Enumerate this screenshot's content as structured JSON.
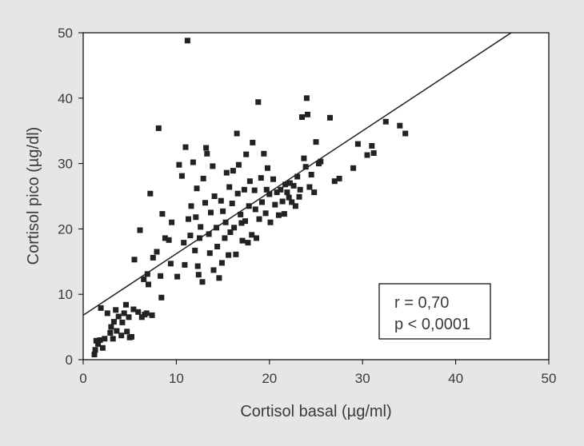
{
  "chart_data": {
    "type": "scatter",
    "title": "",
    "xlabel": "Cortisol basal (µg/ml)",
    "ylabel": "Cortisol pico (µg/dl)",
    "xlim": [
      0,
      50
    ],
    "ylim": [
      0,
      50
    ],
    "x_ticks": [
      "0",
      "10",
      "20",
      "30",
      "40",
      "50"
    ],
    "y_ticks": [
      "0",
      "10",
      "20",
      "30",
      "40",
      "50"
    ],
    "grid": false,
    "colors": {
      "points": "#222222",
      "line": "#222222",
      "background": "#e6e6e6",
      "plot_area": "#ffffff"
    },
    "regression_line": {
      "intercept": 6.8,
      "slope": 0.94
    },
    "annotation": {
      "lines": [
        "r = 0,70",
        "p < 0,0001"
      ],
      "placement": "bottom-right"
    },
    "points": [
      [
        1.2,
        0.8
      ],
      [
        1.3,
        1.5
      ],
      [
        1.4,
        2.9
      ],
      [
        1.6,
        2.4
      ],
      [
        1.8,
        3.0
      ],
      [
        2.1,
        1.8
      ],
      [
        2.3,
        3.2
      ],
      [
        1.9,
        7.9
      ],
      [
        2.6,
        7.1
      ],
      [
        2.9,
        4.1
      ],
      [
        3.0,
        5.0
      ],
      [
        3.2,
        3.2
      ],
      [
        3.3,
        5.8
      ],
      [
        3.5,
        7.6
      ],
      [
        3.6,
        4.4
      ],
      [
        3.8,
        6.6
      ],
      [
        4.1,
        3.7
      ],
      [
        4.2,
        5.7
      ],
      [
        4.4,
        7.1
      ],
      [
        4.6,
        8.4
      ],
      [
        4.7,
        4.3
      ],
      [
        4.9,
        6.5
      ],
      [
        5.0,
        3.4
      ],
      [
        5.2,
        3.5
      ],
      [
        5.4,
        7.7
      ],
      [
        5.5,
        15.3
      ],
      [
        5.9,
        7.3
      ],
      [
        6.1,
        19.8
      ],
      [
        6.3,
        6.5
      ],
      [
        6.5,
        12.3
      ],
      [
        6.6,
        6.9
      ],
      [
        6.8,
        7.1
      ],
      [
        6.9,
        13.1
      ],
      [
        7.0,
        11.5
      ],
      [
        7.2,
        25.4
      ],
      [
        7.4,
        6.8
      ],
      [
        7.5,
        15.6
      ],
      [
        7.9,
        16.5
      ],
      [
        8.1,
        35.4
      ],
      [
        8.3,
        12.8
      ],
      [
        8.4,
        9.5
      ],
      [
        8.5,
        22.3
      ],
      [
        8.8,
        18.6
      ],
      [
        9.2,
        18.3
      ],
      [
        9.4,
        14.7
      ],
      [
        9.5,
        21.0
      ],
      [
        10.1,
        12.7
      ],
      [
        10.3,
        29.8
      ],
      [
        10.6,
        28.1
      ],
      [
        10.8,
        17.9
      ],
      [
        10.9,
        14.5
      ],
      [
        11.0,
        32.5
      ],
      [
        11.2,
        48.8
      ],
      [
        11.3,
        21.5
      ],
      [
        11.5,
        19.0
      ],
      [
        11.6,
        23.5
      ],
      [
        11.8,
        30.2
      ],
      [
        12.0,
        16.7
      ],
      [
        12.1,
        21.8
      ],
      [
        12.2,
        26.2
      ],
      [
        12.3,
        14.3
      ],
      [
        12.4,
        13.0
      ],
      [
        12.5,
        18.6
      ],
      [
        12.6,
        20.3
      ],
      [
        12.8,
        11.9
      ],
      [
        12.9,
        27.7
      ],
      [
        13.1,
        24.0
      ],
      [
        13.2,
        32.4
      ],
      [
        13.3,
        31.5
      ],
      [
        13.5,
        19.2
      ],
      [
        13.6,
        16.3
      ],
      [
        13.7,
        22.5
      ],
      [
        13.9,
        29.6
      ],
      [
        14.0,
        13.7
      ],
      [
        14.1,
        25.0
      ],
      [
        14.3,
        20.2
      ],
      [
        14.4,
        17.3
      ],
      [
        14.6,
        12.5
      ],
      [
        14.8,
        24.3
      ],
      [
        14.9,
        14.8
      ],
      [
        15.0,
        22.7
      ],
      [
        15.2,
        18.6
      ],
      [
        15.3,
        21.0
      ],
      [
        15.4,
        28.6
      ],
      [
        15.6,
        16.0
      ],
      [
        15.7,
        26.4
      ],
      [
        15.8,
        19.5
      ],
      [
        16.0,
        23.9
      ],
      [
        16.1,
        28.9
      ],
      [
        16.2,
        20.2
      ],
      [
        16.4,
        16.1
      ],
      [
        16.5,
        34.6
      ],
      [
        16.6,
        25.4
      ],
      [
        16.7,
        29.8
      ],
      [
        16.9,
        22.2
      ],
      [
        17.0,
        20.9
      ],
      [
        17.1,
        18.2
      ],
      [
        17.3,
        26.0
      ],
      [
        17.4,
        21.2
      ],
      [
        17.5,
        31.4
      ],
      [
        17.7,
        17.9
      ],
      [
        17.8,
        23.5
      ],
      [
        17.9,
        27.3
      ],
      [
        18.1,
        19.1
      ],
      [
        18.2,
        33.2
      ],
      [
        18.4,
        25.9
      ],
      [
        18.5,
        23.0
      ],
      [
        18.6,
        18.6
      ],
      [
        18.8,
        39.4
      ],
      [
        18.9,
        21.5
      ],
      [
        19.1,
        27.8
      ],
      [
        19.2,
        24.1
      ],
      [
        19.4,
        31.5
      ],
      [
        19.6,
        22.4
      ],
      [
        19.7,
        26.0
      ],
      [
        19.8,
        29.3
      ],
      [
        20.0,
        25.3
      ],
      [
        20.1,
        21.0
      ],
      [
        20.4,
        27.6
      ],
      [
        20.6,
        23.7
      ],
      [
        20.8,
        25.6
      ],
      [
        21.0,
        22.1
      ],
      [
        21.2,
        26.0
      ],
      [
        21.4,
        24.2
      ],
      [
        21.6,
        22.3
      ],
      [
        21.7,
        26.8
      ],
      [
        21.9,
        25.6
      ],
      [
        22.1,
        24.8
      ],
      [
        22.2,
        27.0
      ],
      [
        22.4,
        24.1
      ],
      [
        22.6,
        26.6
      ],
      [
        22.8,
        23.5
      ],
      [
        23.0,
        28.0
      ],
      [
        23.2,
        24.9
      ],
      [
        23.3,
        26.0
      ],
      [
        23.5,
        37.1
      ],
      [
        23.7,
        30.8
      ],
      [
        23.9,
        29.5
      ],
      [
        24.0,
        40.0
      ],
      [
        24.1,
        37.5
      ],
      [
        24.3,
        26.4
      ],
      [
        24.5,
        28.3
      ],
      [
        24.8,
        25.6
      ],
      [
        25.0,
        33.3
      ],
      [
        25.3,
        30.0
      ],
      [
        25.5,
        30.3
      ],
      [
        26.5,
        37.0
      ],
      [
        27.0,
        27.3
      ],
      [
        27.5,
        27.7
      ],
      [
        29.0,
        29.3
      ],
      [
        29.5,
        33.0
      ],
      [
        30.5,
        31.3
      ],
      [
        31.0,
        32.7
      ],
      [
        31.2,
        31.6
      ],
      [
        32.5,
        36.4
      ],
      [
        34.0,
        35.8
      ],
      [
        34.6,
        34.6
      ]
    ]
  }
}
